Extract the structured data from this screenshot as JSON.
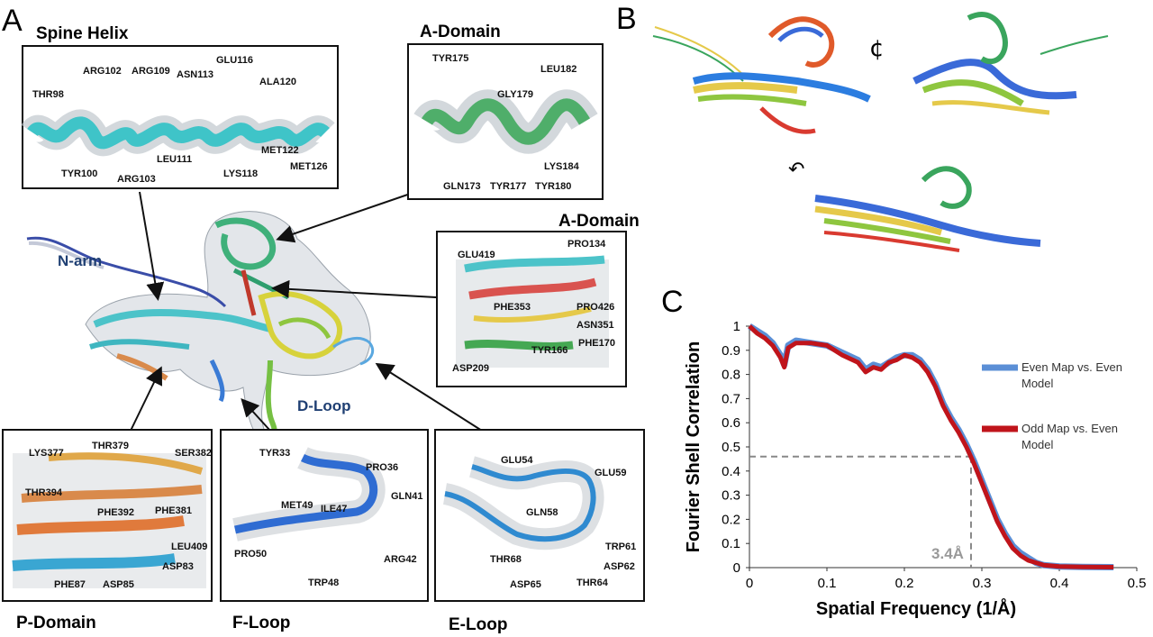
{
  "panel_a": {
    "letter": "A",
    "insets": {
      "spine_helix": {
        "title": "Spine Helix",
        "labels": [
          "ARG102",
          "ARG109",
          "ASN113",
          "GLU116",
          "THR98",
          "ALA120",
          "LEU111",
          "MET122",
          "TYR100",
          "ARG103",
          "LYS118",
          "MET126"
        ]
      },
      "a_domain_top": {
        "title": "A-Domain",
        "labels": [
          "TYR175",
          "LEU182",
          "GLY179",
          "LYS184",
          "GLN173",
          "TYR177",
          "TYR180"
        ]
      },
      "a_domain_right": {
        "title": "A-Domain",
        "labels": [
          "GLU419",
          "PRO134",
          "PRO426",
          "PHE353",
          "ASN351",
          "TYR166",
          "PHE170",
          "ASP209"
        ]
      },
      "p_domain": {
        "title": "P-Domain",
        "labels": [
          "LYS377",
          "THR379",
          "SER382",
          "THR394",
          "PHE392",
          "PHE381",
          "LEU409",
          "ASP83",
          "PHE87",
          "ASP85"
        ]
      },
      "f_loop": {
        "title": "F-Loop",
        "labels": [
          "TYR33",
          "PRO36",
          "GLN41",
          "MET49",
          "ILE47",
          "PRO50",
          "ARG42",
          "TRP48"
        ]
      },
      "e_loop": {
        "title": "E-Loop",
        "labels": [
          "GLU54",
          "GLU59",
          "GLN58",
          "TRP61",
          "THR68",
          "ASP62",
          "ASP65",
          "THR64"
        ]
      }
    },
    "center_labels": {
      "n_arm": "N-arm",
      "d_loop": "D-Loop"
    }
  },
  "panel_b": {
    "letter": "B"
  },
  "panel_c": {
    "letter": "C",
    "annotation": "3.4Å"
  },
  "chart_data": {
    "type": "line",
    "xlabel": "Spatial Frequency (1/Å)",
    "ylabel": "Fourier Shell Correlation",
    "xlim": [
      0,
      0.5
    ],
    "ylim": [
      0,
      1
    ],
    "x_ticks": [
      "0",
      "0.1",
      "0.2",
      "0.3",
      "0.4",
      "0.5"
    ],
    "y_ticks": [
      "0",
      "0.1",
      "0.2",
      "0.3",
      "0.4",
      "0.5",
      "0.6",
      "0.7",
      "0.8",
      "0.9",
      "1"
    ],
    "grid": false,
    "legend_position": "right",
    "threshold": {
      "fsc": 0.46,
      "frequency": 0.286
    },
    "series": [
      {
        "name": "Even Map vs. Even Model",
        "color": "#5b8fd6",
        "x": [
          0,
          0.01,
          0.02,
          0.03,
          0.04,
          0.045,
          0.05,
          0.06,
          0.08,
          0.1,
          0.12,
          0.14,
          0.15,
          0.16,
          0.17,
          0.18,
          0.19,
          0.2,
          0.21,
          0.22,
          0.23,
          0.24,
          0.25,
          0.26,
          0.27,
          0.28,
          0.29,
          0.3,
          0.31,
          0.32,
          0.33,
          0.34,
          0.35,
          0.36,
          0.37,
          0.38,
          0.4,
          0.43,
          0.47
        ],
        "y": [
          1.0,
          0.98,
          0.96,
          0.93,
          0.88,
          0.84,
          0.92,
          0.94,
          0.93,
          0.92,
          0.89,
          0.86,
          0.82,
          0.84,
          0.83,
          0.85,
          0.87,
          0.88,
          0.88,
          0.86,
          0.82,
          0.76,
          0.68,
          0.62,
          0.57,
          0.51,
          0.44,
          0.36,
          0.28,
          0.2,
          0.14,
          0.09,
          0.06,
          0.04,
          0.02,
          0.01,
          0.005,
          0.003,
          0.002
        ]
      },
      {
        "name": "Odd Map vs. Even Model",
        "color": "#c0141b",
        "x": [
          0,
          0.01,
          0.02,
          0.03,
          0.04,
          0.045,
          0.05,
          0.06,
          0.08,
          0.1,
          0.12,
          0.14,
          0.15,
          0.16,
          0.17,
          0.18,
          0.19,
          0.2,
          0.21,
          0.22,
          0.23,
          0.24,
          0.25,
          0.26,
          0.27,
          0.28,
          0.29,
          0.3,
          0.31,
          0.32,
          0.33,
          0.34,
          0.35,
          0.36,
          0.37,
          0.38,
          0.4,
          0.43,
          0.47
        ],
        "y": [
          1.0,
          0.97,
          0.95,
          0.92,
          0.87,
          0.83,
          0.91,
          0.93,
          0.93,
          0.92,
          0.88,
          0.85,
          0.81,
          0.83,
          0.82,
          0.85,
          0.86,
          0.88,
          0.87,
          0.85,
          0.81,
          0.75,
          0.67,
          0.61,
          0.56,
          0.5,
          0.43,
          0.35,
          0.27,
          0.19,
          0.13,
          0.08,
          0.05,
          0.03,
          0.02,
          0.01,
          0.005,
          0.003,
          0.002
        ]
      }
    ]
  }
}
